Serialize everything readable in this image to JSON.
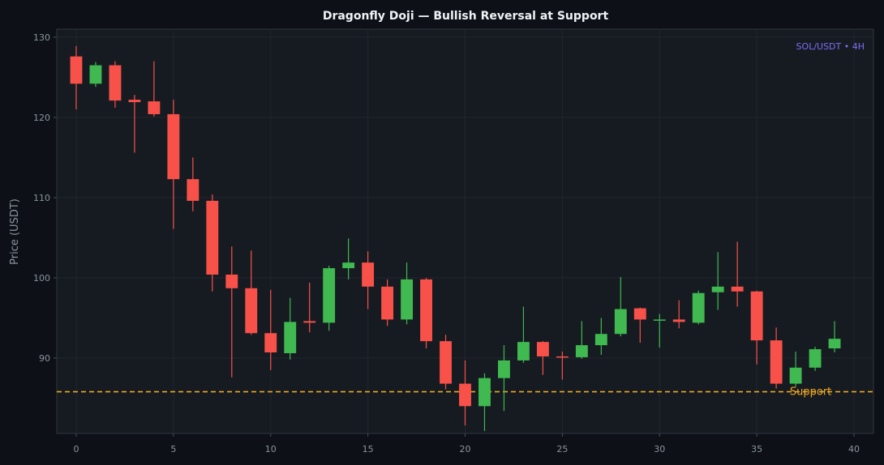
{
  "chart_data": {
    "type": "candlestick",
    "title": "Dragonfly Doji — Bullish Reversal at Support",
    "xlabel": "",
    "ylabel": "Price (USDT)",
    "annotation": "SOL/USDT • 4H",
    "xlim": [
      -1,
      41
    ],
    "ylim": [
      80.6,
      131
    ],
    "x_ticks": [
      0,
      5,
      10,
      15,
      20,
      25,
      30,
      35,
      40
    ],
    "y_ticks": [
      90,
      100,
      110,
      120,
      130
    ],
    "grid": true,
    "support": {
      "label": "Support",
      "value": 85.8
    },
    "candles": [
      {
        "x": 0,
        "open": 127.6,
        "high": 128.9,
        "low": 121.0,
        "close": 124.2
      },
      {
        "x": 1,
        "open": 124.2,
        "high": 126.9,
        "low": 123.8,
        "close": 126.5
      },
      {
        "x": 2,
        "open": 126.5,
        "high": 127.0,
        "low": 121.2,
        "close": 122.1
      },
      {
        "x": 3,
        "open": 122.2,
        "high": 122.8,
        "low": 115.6,
        "close": 121.9
      },
      {
        "x": 4,
        "open": 122.0,
        "high": 127.0,
        "low": 120.1,
        "close": 120.4
      },
      {
        "x": 5,
        "open": 120.4,
        "high": 122.2,
        "low": 106.1,
        "close": 112.3
      },
      {
        "x": 6,
        "open": 112.3,
        "high": 115.0,
        "low": 108.3,
        "close": 109.6
      },
      {
        "x": 7,
        "open": 109.6,
        "high": 110.4,
        "low": 98.3,
        "close": 100.4
      },
      {
        "x": 8,
        "open": 100.4,
        "high": 103.9,
        "low": 87.6,
        "close": 98.7
      },
      {
        "x": 9,
        "open": 98.7,
        "high": 103.4,
        "low": 92.9,
        "close": 93.1
      },
      {
        "x": 10,
        "open": 93.1,
        "high": 98.5,
        "low": 88.5,
        "close": 90.7
      },
      {
        "x": 11,
        "open": 90.6,
        "high": 97.5,
        "low": 89.8,
        "close": 94.5
      },
      {
        "x": 12,
        "open": 94.6,
        "high": 99.4,
        "low": 93.2,
        "close": 94.4
      },
      {
        "x": 13,
        "open": 94.4,
        "high": 101.5,
        "low": 93.4,
        "close": 101.2
      },
      {
        "x": 14,
        "open": 101.2,
        "high": 104.9,
        "low": 99.8,
        "close": 101.9
      },
      {
        "x": 15,
        "open": 101.9,
        "high": 103.3,
        "low": 96.1,
        "close": 98.9
      },
      {
        "x": 16,
        "open": 98.9,
        "high": 99.8,
        "low": 94.0,
        "close": 94.8
      },
      {
        "x": 17,
        "open": 94.8,
        "high": 101.9,
        "low": 94.2,
        "close": 99.8
      },
      {
        "x": 18,
        "open": 99.8,
        "high": 100.0,
        "low": 91.2,
        "close": 92.1
      },
      {
        "x": 19,
        "open": 92.1,
        "high": 92.9,
        "low": 86.1,
        "close": 86.8
      },
      {
        "x": 20,
        "open": 86.8,
        "high": 89.7,
        "low": 81.6,
        "close": 84.0
      },
      {
        "x": 21,
        "open": 84.0,
        "high": 88.1,
        "low": 80.9,
        "close": 87.5
      },
      {
        "x": 22,
        "open": 87.5,
        "high": 91.6,
        "low": 83.4,
        "close": 89.7
      },
      {
        "x": 23,
        "open": 89.7,
        "high": 96.4,
        "low": 89.4,
        "close": 92.0
      },
      {
        "x": 24,
        "open": 92.0,
        "high": 92.1,
        "low": 87.9,
        "close": 90.2
      },
      {
        "x": 25,
        "open": 90.2,
        "high": 90.8,
        "low": 87.3,
        "close": 90.1
      },
      {
        "x": 26,
        "open": 90.1,
        "high": 94.6,
        "low": 89.9,
        "close": 91.6
      },
      {
        "x": 27,
        "open": 91.6,
        "high": 95.0,
        "low": 90.4,
        "close": 93.0
      },
      {
        "x": 28,
        "open": 93.0,
        "high": 100.1,
        "low": 92.7,
        "close": 96.1
      },
      {
        "x": 29,
        "open": 96.2,
        "high": 96.3,
        "low": 91.9,
        "close": 94.8
      },
      {
        "x": 30,
        "open": 94.7,
        "high": 95.5,
        "low": 91.3,
        "close": 94.8
      },
      {
        "x": 31,
        "open": 94.8,
        "high": 97.2,
        "low": 93.7,
        "close": 94.5
      },
      {
        "x": 32,
        "open": 94.4,
        "high": 98.4,
        "low": 94.2,
        "close": 98.1
      },
      {
        "x": 33,
        "open": 98.2,
        "high": 103.2,
        "low": 96.0,
        "close": 98.9
      },
      {
        "x": 34,
        "open": 98.9,
        "high": 104.5,
        "low": 96.4,
        "close": 98.3
      },
      {
        "x": 35,
        "open": 98.3,
        "high": 98.4,
        "low": 89.2,
        "close": 92.2
      },
      {
        "x": 36,
        "open": 92.2,
        "high": 93.8,
        "low": 86.2,
        "close": 86.8
      },
      {
        "x": 37,
        "open": 86.8,
        "high": 90.8,
        "low": 86.4,
        "close": 88.8
      },
      {
        "x": 38,
        "open": 88.8,
        "high": 91.4,
        "low": 88.4,
        "close": 91.1
      },
      {
        "x": 39,
        "open": 91.2,
        "high": 94.6,
        "low": 90.7,
        "close": 92.4
      }
    ],
    "colors": {
      "up": "#3fb950",
      "down": "#f85149",
      "support": "#f0a820",
      "annotation": "#7b6ef6",
      "background": "#0d1117",
      "plot_background": "#161b22",
      "grid": "#21262d",
      "text": "#8b949e",
      "title": "#f0f3f6"
    }
  }
}
